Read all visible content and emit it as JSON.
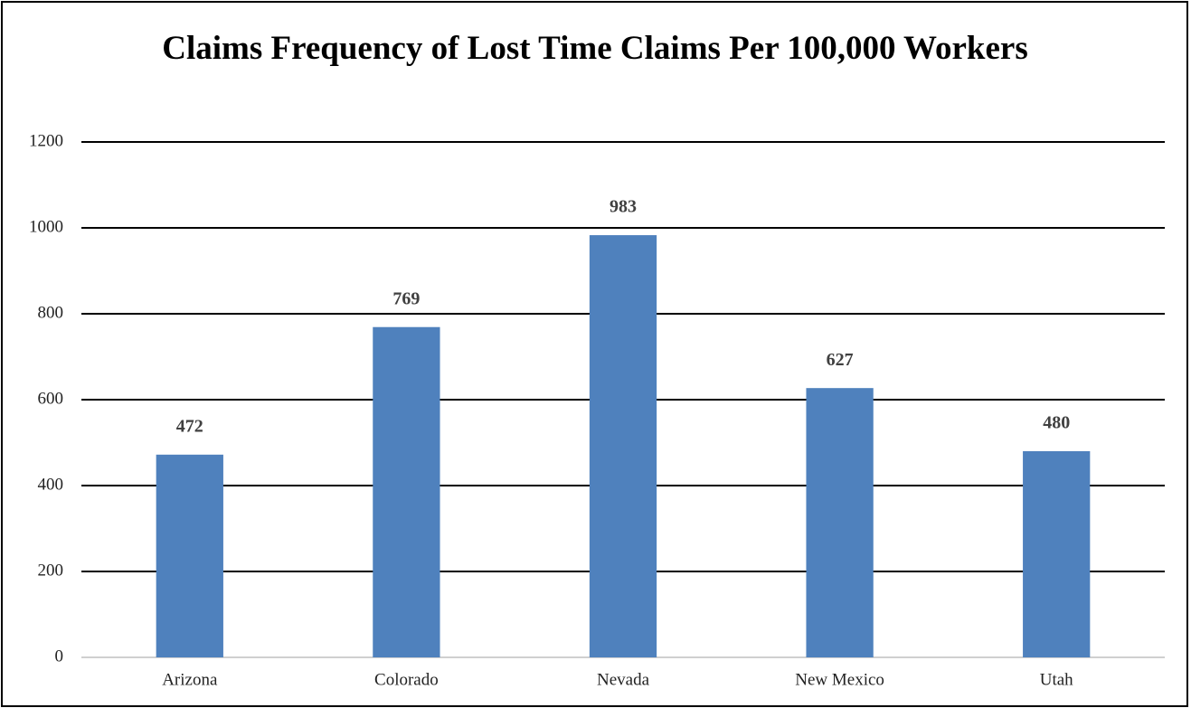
{
  "chart_data": {
    "type": "bar",
    "title": "Claims Frequency of Lost Time Claims Per 100,000 Workers",
    "categories": [
      "Arizona",
      "Colorado",
      "Nevada",
      "New Mexico",
      "Utah"
    ],
    "values": [
      472,
      769,
      983,
      627,
      480
    ],
    "color": "#4f81bd",
    "ylim": [
      0,
      1200
    ],
    "yticks": [
      0,
      200,
      400,
      600,
      800,
      1000,
      1200
    ],
    "grid": true
  }
}
